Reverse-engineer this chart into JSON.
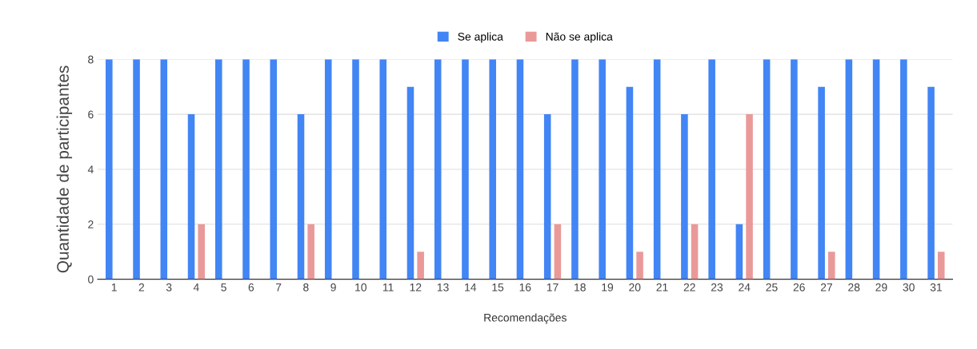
{
  "chart_data": {
    "type": "bar",
    "xlabel": "Recomendações",
    "ylabel": "Quantidade de participantes",
    "categories": [
      "1",
      "2",
      "3",
      "4",
      "5",
      "6",
      "7",
      "8",
      "9",
      "10",
      "11",
      "12",
      "13",
      "14",
      "15",
      "16",
      "17",
      "18",
      "19",
      "20",
      "21",
      "22",
      "23",
      "24",
      "25",
      "26",
      "27",
      "28",
      "29",
      "30",
      "31"
    ],
    "series": [
      {
        "name": "Se aplica",
        "color": "#4285f4",
        "values": [
          8,
          8,
          8,
          6,
          8,
          8,
          8,
          6,
          8,
          8,
          8,
          7,
          8,
          8,
          8,
          8,
          6,
          8,
          8,
          7,
          8,
          6,
          8,
          2,
          8,
          8,
          7,
          8,
          8,
          8,
          7
        ]
      },
      {
        "name": "Não se aplica",
        "color": "#ea9999",
        "values": [
          0,
          0,
          0,
          2,
          0,
          0,
          0,
          2,
          0,
          0,
          0,
          1,
          0,
          0,
          0,
          0,
          2,
          0,
          0,
          1,
          0,
          2,
          0,
          6,
          0,
          0,
          1,
          0,
          0,
          0,
          1
        ]
      }
    ],
    "ylim": [
      0,
      8
    ],
    "yticks": [
      0,
      2,
      4,
      6,
      8
    ],
    "grid": "y",
    "legend": "top"
  }
}
